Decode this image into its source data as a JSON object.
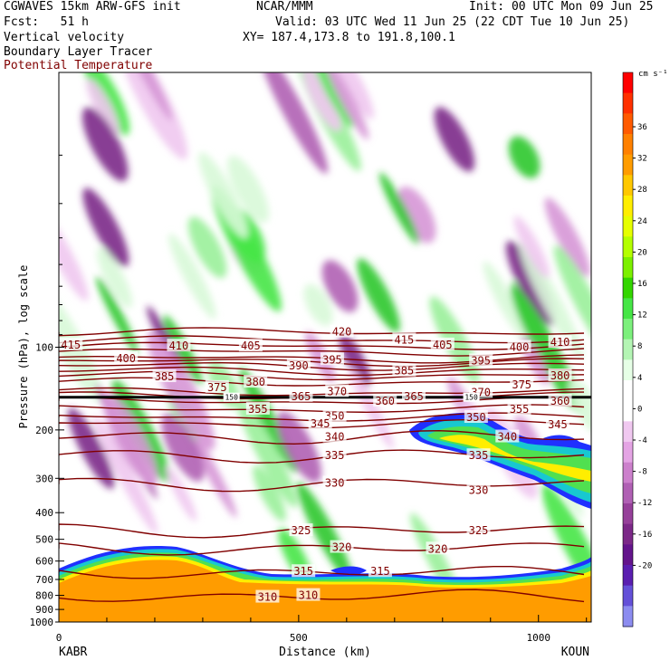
{
  "header": {
    "model": "CGWAVES 15km ARW-GFS init",
    "org": "NCAR/MMM",
    "init": "Init: 00 UTC Mon 09 Jun 25",
    "fcst": "Fcst:   51 h",
    "valid": "Valid: 03 UTC Wed 11 Jun 25 (22 CDT Tue 10 Jun 25)",
    "field1": "Vertical velocity",
    "field2": "Boundary Layer Tracer",
    "field3": "Potential Temperature",
    "xy": "XY= 187.4,173.8 to 191.8,100.1"
  },
  "chart_data": {
    "type": "heatmap",
    "xlabel": "Distance (km)",
    "ylabel": "Pressure (hPa), log scale",
    "x_ticks": [
      "0",
      "500",
      "1000"
    ],
    "x_range": [
      0,
      1110
    ],
    "x_end_labels": {
      "left": "KABR",
      "right": "KOUN"
    },
    "y_ticks": [
      "100",
      "200",
      "300",
      "400",
      "500",
      "600",
      "700",
      "800",
      "900",
      "1000"
    ],
    "y_range_hpa": [
      1000,
      10
    ],
    "y_scale": "log",
    "colorbar": {
      "unit": "cm s⁻¹",
      "labels": [
        "36",
        "32",
        "28",
        "24",
        "20",
        "16",
        "12",
        "8",
        "4",
        "0",
        "-4",
        "-8",
        "-12",
        "-16",
        "-20"
      ],
      "colors": [
        "#ff0000",
        "#ff3000",
        "#ff5a00",
        "#ff8000",
        "#ff9c00",
        "#ffc800",
        "#ffee00",
        "#e6ff00",
        "#b4ff00",
        "#7cf000",
        "#33d600",
        "#46e646",
        "#7cf07c",
        "#b4f5b4",
        "#e6ffe6",
        "#ffffff",
        "#ffffff",
        "#f0c8f0",
        "#e4a4e4",
        "#cc80cc",
        "#b060b4",
        "#96409a",
        "#7c2888",
        "#64148c",
        "#5a1eb0",
        "#6450d8",
        "#8c8cf0"
      ]
    },
    "theta_series": {
      "name": "Potential Temperature",
      "color": "#800000",
      "labels": [
        {
          "value": "415",
          "x_km": 25,
          "p": 98
        },
        {
          "value": "400",
          "x_km": 140,
          "p": 110
        },
        {
          "value": "410",
          "x_km": 250,
          "p": 99
        },
        {
          "value": "405",
          "x_km": 400,
          "p": 99
        },
        {
          "value": "420",
          "x_km": 590,
          "p": 88
        },
        {
          "value": "415",
          "x_km": 720,
          "p": 94
        },
        {
          "value": "405",
          "x_km": 800,
          "p": 98
        },
        {
          "value": "395",
          "x_km": 880,
          "p": 112
        },
        {
          "value": "400",
          "x_km": 960,
          "p": 100
        },
        {
          "value": "410",
          "x_km": 1045,
          "p": 96
        },
        {
          "value": "385",
          "x_km": 220,
          "p": 128
        },
        {
          "value": "375",
          "x_km": 330,
          "p": 140
        },
        {
          "value": "380",
          "x_km": 410,
          "p": 134
        },
        {
          "value": "390",
          "x_km": 500,
          "p": 117
        },
        {
          "value": "395",
          "x_km": 570,
          "p": 111
        },
        {
          "value": "385",
          "x_km": 720,
          "p": 122
        },
        {
          "value": "370",
          "x_km": 580,
          "p": 145
        },
        {
          "value": "365",
          "x_km": 505,
          "p": 151
        },
        {
          "value": "360",
          "x_km": 680,
          "p": 157
        },
        {
          "value": "365",
          "x_km": 740,
          "p": 151
        },
        {
          "value": "370",
          "x_km": 880,
          "p": 146
        },
        {
          "value": "375",
          "x_km": 965,
          "p": 137
        },
        {
          "value": "380",
          "x_km": 1045,
          "p": 127
        },
        {
          "value": "360",
          "x_km": 1045,
          "p": 157
        },
        {
          "value": "355",
          "x_km": 415,
          "p": 168
        },
        {
          "value": "355",
          "x_km": 960,
          "p": 168
        },
        {
          "value": "350",
          "x_km": 575,
          "p": 178
        },
        {
          "value": "350",
          "x_km": 870,
          "p": 180
        },
        {
          "value": "345",
          "x_km": 545,
          "p": 190
        },
        {
          "value": "345",
          "x_km": 1040,
          "p": 191
        },
        {
          "value": "340",
          "x_km": 575,
          "p": 212
        },
        {
          "value": "340",
          "x_km": 935,
          "p": 212
        },
        {
          "value": "335",
          "x_km": 575,
          "p": 248
        },
        {
          "value": "335",
          "x_km": 875,
          "p": 248
        },
        {
          "value": "330",
          "x_km": 575,
          "p": 312
        },
        {
          "value": "330",
          "x_km": 875,
          "p": 332
        },
        {
          "value": "325",
          "x_km": 505,
          "p": 465
        },
        {
          "value": "325",
          "x_km": 875,
          "p": 465
        },
        {
          "value": "320",
          "x_km": 590,
          "p": 535
        },
        {
          "value": "320",
          "x_km": 790,
          "p": 542
        },
        {
          "value": "315",
          "x_km": 510,
          "p": 655
        },
        {
          "value": "315",
          "x_km": 670,
          "p": 655
        },
        {
          "value": "310",
          "x_km": 435,
          "p": 812
        },
        {
          "value": "310",
          "x_km": 520,
          "p": 800
        }
      ],
      "levels": [
        420,
        415,
        410,
        405,
        400,
        395,
        390,
        385,
        380,
        375,
        370,
        365,
        360,
        355,
        350,
        345,
        340,
        335,
        330,
        325,
        320,
        315,
        310
      ],
      "level_pressures": [
        88,
        94,
        99,
        104,
        110,
        113,
        117,
        122,
        127,
        134,
        146,
        151,
        157,
        168,
        180,
        190,
        212,
        248,
        315,
        465,
        540,
        660,
        805
      ]
    },
    "tracer_marks": [
      {
        "value": "150",
        "x_km": 360,
        "p": 152
      },
      {
        "value": "150",
        "x_km": 860,
        "p": 152
      }
    ]
  }
}
